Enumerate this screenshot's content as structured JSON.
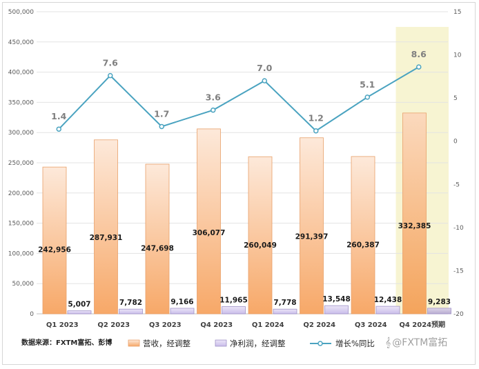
{
  "source_note": "数据来源：FXTM富拓、彭博",
  "watermark": "@FXTM富拓",
  "watermark_glyph": "𝄞",
  "chart_data": {
    "type": "bar",
    "categories": [
      "Q1 2023",
      "Q2 2023",
      "Q3 2023",
      "Q4 2023",
      "Q1 2024",
      "Q2 2024",
      "Q3 2024",
      "Q4 2024预期"
    ],
    "highlight_index": 7,
    "series": [
      {
        "name": "营收，经调整",
        "type": "bar",
        "axis": "left",
        "color": "#f5a35f",
        "values": [
          242956,
          287931,
          247698,
          306077,
          260049,
          291397,
          260387,
          332385
        ],
        "labels": [
          "242,956",
          "287,931",
          "247,698",
          "306,077",
          "260,049",
          "291,397",
          "260,387",
          "332,385"
        ]
      },
      {
        "name": "净利润，经调整",
        "type": "bar",
        "axis": "left",
        "color": "#b9a9e0",
        "values": [
          5007,
          7782,
          9166,
          11965,
          7778,
          13548,
          12438,
          9283
        ],
        "labels": [
          "5,007",
          "7,782",
          "9,166",
          "11,965",
          "7,778",
          "13,548",
          "12,438",
          "9,283"
        ]
      },
      {
        "name": "增长%同比",
        "type": "line",
        "axis": "right",
        "color": "#4aa3c0",
        "values": [
          1.4,
          7.6,
          1.7,
          3.6,
          7.0,
          1.2,
          5.1,
          8.6
        ],
        "labels": [
          "1.4",
          "7.6",
          "1.7",
          "3.6",
          "7.0",
          "1.2",
          "5.1",
          "8.6"
        ]
      }
    ],
    "y_left": {
      "min": 0,
      "max": 500000,
      "ticks": [
        0,
        50000,
        100000,
        150000,
        200000,
        250000,
        300000,
        350000,
        400000,
        450000,
        500000
      ],
      "tick_labels": [
        "0",
        "50,000",
        "100,000",
        "150,000",
        "200,000",
        "250,000",
        "300,000",
        "350,000",
        "400,000",
        "450,000",
        "500,000"
      ]
    },
    "y_right": {
      "min": -20,
      "max": 15,
      "ticks": [
        -20,
        -15,
        -10,
        -5,
        0,
        5,
        10,
        15
      ],
      "tick_labels": [
        "-20",
        "-15",
        "-10",
        "-5",
        "0",
        "5",
        "10",
        "15"
      ]
    },
    "grid": true,
    "legend_position": "bottom",
    "title": "",
    "xlabel": "",
    "ylabel": ""
  }
}
